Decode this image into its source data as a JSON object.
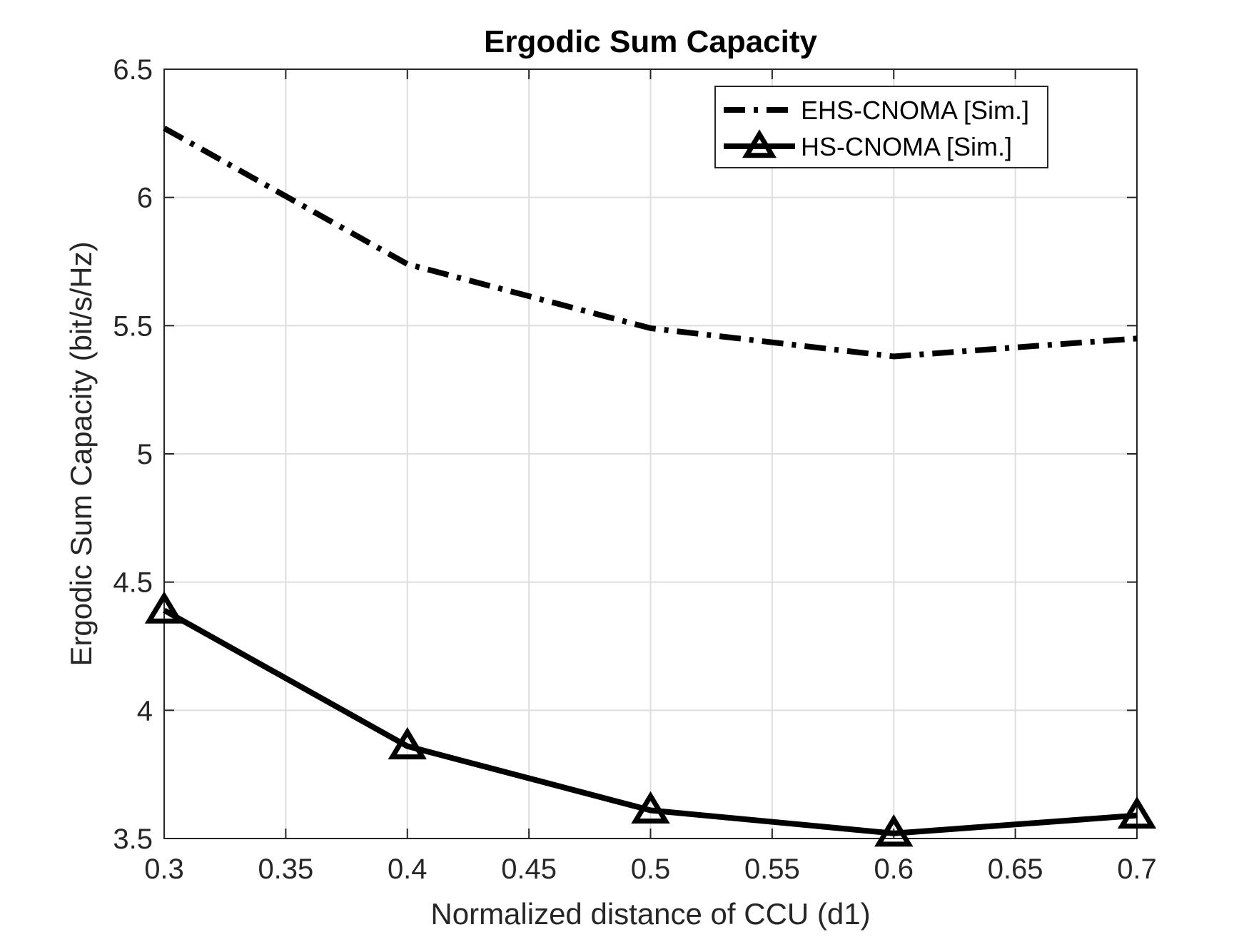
{
  "chart_data": {
    "type": "line",
    "title": "Ergodic Sum Capacity",
    "xlabel": "Normalized distance of CCU (d1)",
    "ylabel": "Ergodic Sum Capacity (bit/s/Hz)",
    "xlim": [
      0.3,
      0.7
    ],
    "ylim": [
      3.5,
      6.5
    ],
    "xticks": [
      "0.3",
      "0.35",
      "0.4",
      "0.45",
      "0.5",
      "0.55",
      "0.6",
      "0.65",
      "0.7"
    ],
    "yticks": [
      "3.5",
      "4",
      "4.5",
      "5",
      "5.5",
      "6",
      "6.5"
    ],
    "grid": true,
    "legend_position": "top-right",
    "x": [
      0.3,
      0.4,
      0.5,
      0.6,
      0.7
    ],
    "series": [
      {
        "name": "EHS-CNOMA [Sim.]",
        "values": [
          6.27,
          5.74,
          5.49,
          5.38,
          5.45
        ],
        "color": "#000000",
        "line_style": "dash-dot",
        "marker": "none"
      },
      {
        "name": "HS-CNOMA [Sim.]",
        "values": [
          4.39,
          3.86,
          3.61,
          3.52,
          3.59
        ],
        "color": "#000000",
        "line_style": "solid",
        "marker": "triangle"
      }
    ]
  }
}
